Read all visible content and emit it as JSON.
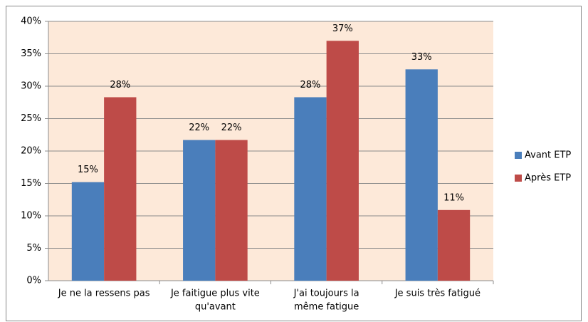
{
  "chart_data": {
    "type": "bar",
    "categories": [
      [
        "Je ne la ressens pas"
      ],
      [
        "Je faitigue plus vite",
        "qu'avant"
      ],
      [
        "J'ai toujours la",
        "même fatigue"
      ],
      [
        "Je suis très fatigué"
      ]
    ],
    "series": [
      {
        "name": "Avant ETP",
        "color": "#4a7ebb",
        "values": [
          15.2,
          21.7,
          28.3,
          32.6
        ],
        "value_labels": [
          "15%",
          "22%",
          "28%",
          "33%"
        ]
      },
      {
        "name": "Après ETP",
        "color": "#be4b48",
        "values": [
          28.3,
          21.7,
          37.0,
          10.9
        ],
        "value_labels": [
          "28%",
          "22%",
          "37%",
          "11%"
        ]
      }
    ],
    "ylim": [
      0,
      40
    ],
    "yticks": [
      {
        "value": 0,
        "label": "0%"
      },
      {
        "value": 5,
        "label": "5%"
      },
      {
        "value": 10,
        "label": "10%"
      },
      {
        "value": 15,
        "label": "15%"
      },
      {
        "value": 20,
        "label": "20%"
      },
      {
        "value": 25,
        "label": "25%"
      },
      {
        "value": 30,
        "label": "30%"
      },
      {
        "value": 35,
        "label": "35%"
      },
      {
        "value": 40,
        "label": "40%"
      }
    ],
    "grid": true,
    "legend": "right",
    "plot_background": "#fde9d9"
  }
}
